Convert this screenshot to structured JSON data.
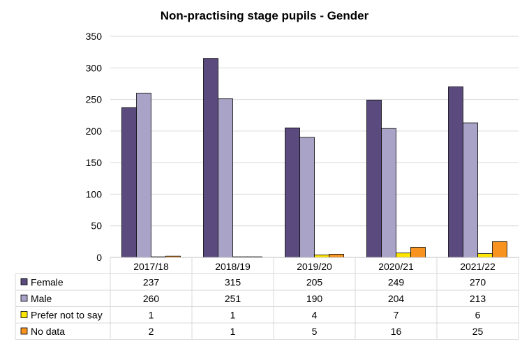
{
  "chart_data": {
    "type": "bar",
    "title": "Non-practising stage pupils - Gender",
    "categories": [
      "2017/18",
      "2018/19",
      "2019/20",
      "2020/21",
      "2021/22"
    ],
    "series": [
      {
        "name": "Female",
        "values": [
          237,
          315,
          205,
          249,
          270
        ],
        "color": "#5b4a7d"
      },
      {
        "name": "Male",
        "values": [
          260,
          251,
          190,
          204,
          213
        ],
        "color": "#a9a3c8"
      },
      {
        "name": "Prefer not to say",
        "values": [
          1,
          1,
          4,
          7,
          6
        ],
        "color": "#ffe600"
      },
      {
        "name": "No data",
        "values": [
          2,
          1,
          5,
          16,
          25
        ],
        "color": "#f7931e"
      }
    ],
    "ylim": [
      0,
      350
    ],
    "yticks": [
      0,
      50,
      100,
      150,
      200,
      250,
      300,
      350
    ],
    "grid": true,
    "legend": "data-table-below"
  }
}
